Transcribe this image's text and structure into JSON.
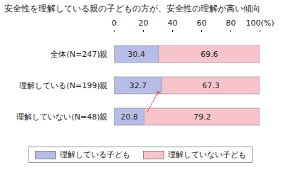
{
  "chart_data": {
    "type": "bar",
    "title": "安全性を理解している親の子どもの方が、安全性の理解が高い傾向",
    "orientation": "horizontal",
    "stacked": true,
    "data_labels": true,
    "grid": false,
    "legend": "bottom",
    "categories": [
      "全体(N=247)親",
      "理解している(N=199)親",
      "理解していない(N=48)親"
    ],
    "series": [
      {
        "name": "理解している子ども",
        "color": "#b8bde8",
        "values": [
          30.4,
          32.7,
          20.8
        ]
      },
      {
        "name": "理解していない子ども",
        "color": "#f7c4cc",
        "values": [
          69.6,
          67.3,
          79.2
        ]
      }
    ],
    "xlim": [
      0,
      100
    ],
    "xticks": [
      0,
      20,
      40,
      60,
      80,
      {
        "value": 100,
        "label": "100(%)"
      }
    ]
  }
}
